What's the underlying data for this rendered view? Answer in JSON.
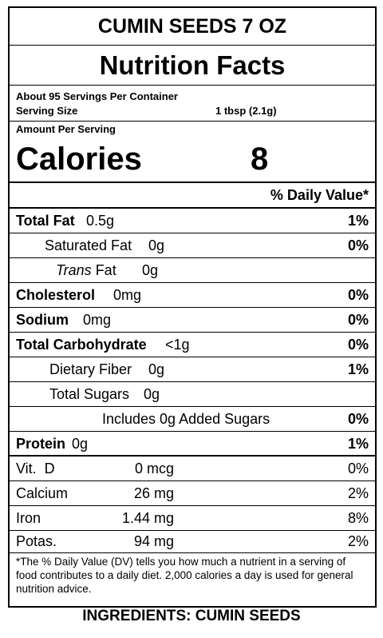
{
  "header": {
    "product": "CUMIN SEEDS 7 OZ",
    "title": "Nutrition Facts"
  },
  "servings": {
    "per_container": "About 95 Servings Per Container",
    "size_label": "Serving Size",
    "size_value": "1 tbsp (2.1g)"
  },
  "amount_per_serving": "Amount Per Serving",
  "calories": {
    "label": "Calories",
    "value": "8"
  },
  "daily_value_header": "% Daily Value*",
  "nutrients": [
    {
      "name": "Total Fat",
      "amount": "0.5g",
      "dv": "1%"
    },
    {
      "name": "Saturated Fat",
      "amount": "0g",
      "dv": "0%"
    },
    {
      "name": "Trans",
      "name2": "Fat",
      "amount": "0g"
    },
    {
      "name": "Cholesterol",
      "amount": "0mg",
      "dv": "0%"
    },
    {
      "name": "Sodium",
      "amount": "0mg",
      "dv": "0%"
    },
    {
      "name": "Total Carbohydrate",
      "amount": "<1g",
      "dv": "0%"
    },
    {
      "name": "Dietary Fiber",
      "amount": "0g",
      "dv": "1%"
    },
    {
      "name": "Total Sugars",
      "amount": "0g"
    },
    {
      "name": "Includes 0g Added Sugars",
      "dv": "0%"
    },
    {
      "name": "Protein",
      "amount": "0g",
      "dv": "1%"
    }
  ],
  "vitamins": [
    {
      "name": "Vit.  D",
      "amount": "0 mcg",
      "dv": "0%"
    },
    {
      "name": "Calcium",
      "amount": "26 mg",
      "dv": "2%"
    },
    {
      "name": "Iron",
      "amount": "1.44 mg",
      "dv": "8%"
    },
    {
      "name": "Potas.",
      "amount": "94 mg",
      "dv": "2%"
    }
  ],
  "footnote": "*The % Daily Value (DV) tells you how much a nutrient in a serving of food contributes to a daily diet. 2,000 calories a day is used for general nutrition advice.",
  "ingredients": "INGREDIENTS: CUMIN SEEDS"
}
